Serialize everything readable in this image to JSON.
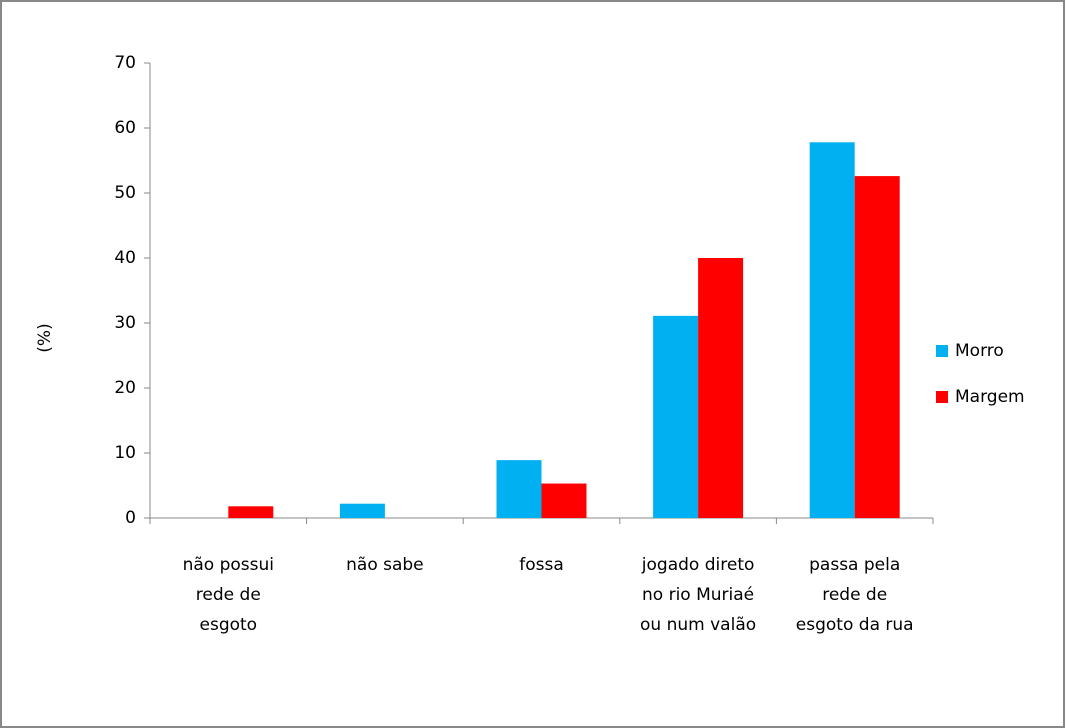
{
  "chart_data": {
    "type": "bar",
    "y_label": "(%)",
    "categories": [
      "não possui\nrede de\nesgoto",
      "não sabe",
      "fossa",
      "jogado direto\nno rio Muriaé\nou num valão",
      "passa pela\nrede de\nesgoto da rua"
    ],
    "series": [
      {
        "name": "Morro",
        "color": "#00b0f0",
        "values": [
          0,
          2.2,
          8.9,
          31.1,
          57.8
        ]
      },
      {
        "name": "Margem",
        "color": "#ff0000",
        "values": [
          1.8,
          0,
          5.3,
          40,
          52.6
        ]
      }
    ],
    "ylim": [
      0,
      70
    ],
    "yticks": [
      0,
      10,
      20,
      30,
      40,
      50,
      60,
      70
    ],
    "grid": false,
    "legend": "right"
  }
}
